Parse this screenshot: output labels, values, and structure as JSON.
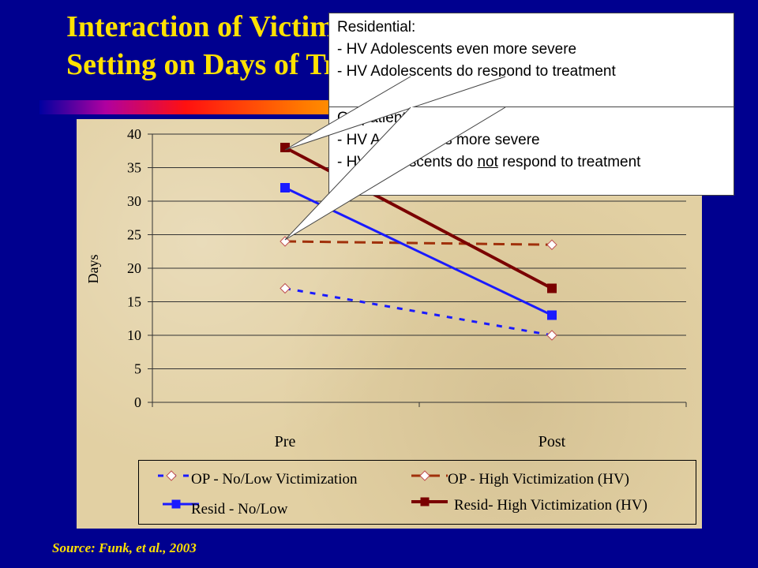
{
  "title": {
    "line1": "Interaction of Victimization and",
    "line2": "Setting on Days of Treatment"
  },
  "source": "Source:  Funk, et al., 2003",
  "callouts": {
    "residential": {
      "heading": "Residential:",
      "line1": "- HV Adolescents even more severe",
      "line2": "- HV Adolescents do respond to treatment"
    },
    "outpatient": {
      "heading": "Outpatient:",
      "line1": "- HV Adolescents more severe",
      "line2_pre": "- HV Adolescents do ",
      "line2_emph": "not",
      "line2_post": " respond to treatment"
    }
  },
  "chart_data": {
    "type": "line",
    "categories": [
      "Pre",
      "Post"
    ],
    "ylabel": "Days",
    "xlabel": "",
    "ylim": [
      0,
      40
    ],
    "yticks": [
      0,
      5,
      10,
      15,
      20,
      25,
      30,
      35,
      40
    ],
    "grid": true,
    "legend_position": "bottom",
    "series": [
      {
        "name": "OP - No/Low Victimization",
        "values": [
          17,
          10
        ],
        "color": "#1a1aff",
        "style": "dashed",
        "marker": "diamond-open"
      },
      {
        "name": "OP - High Victimization (HV)",
        "values": [
          24,
          23.5
        ],
        "color": "#a0300a",
        "style": "dashed",
        "marker": "diamond-open"
      },
      {
        "name": "Resid - No/Low",
        "values": [
          32,
          13
        ],
        "color": "#1a1aff",
        "style": "solid",
        "marker": "square"
      },
      {
        "name": "Resid- High Victimization (HV)",
        "values": [
          38,
          17
        ],
        "color": "#7a0000",
        "style": "solid",
        "marker": "square"
      }
    ]
  }
}
